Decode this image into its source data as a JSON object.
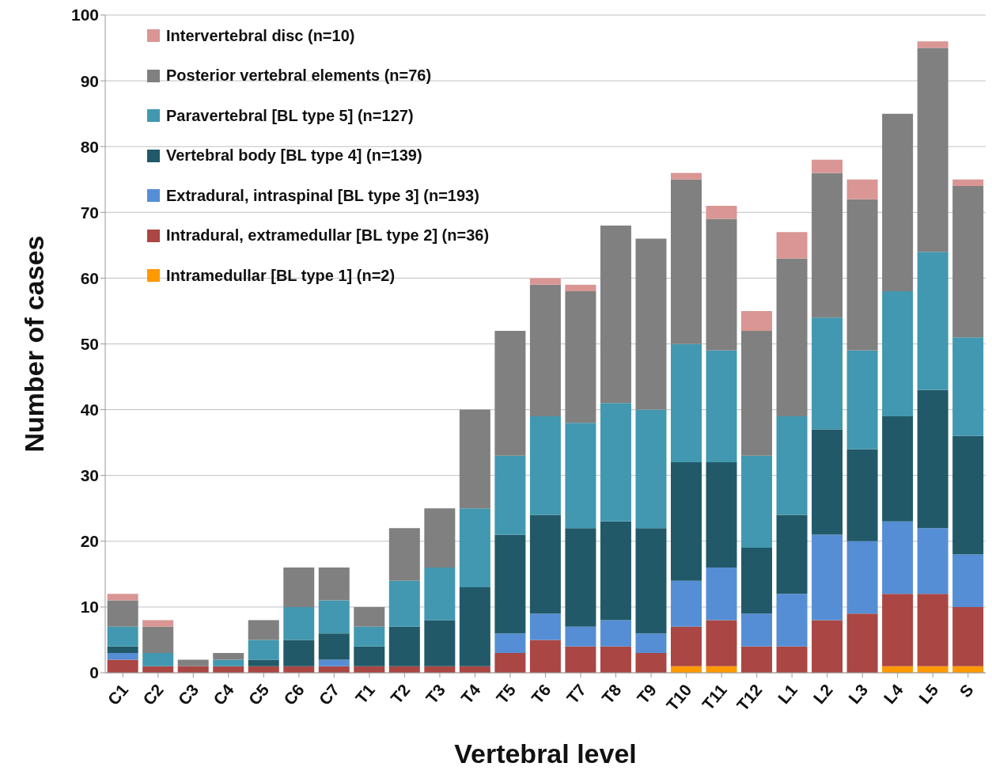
{
  "chart_data": {
    "type": "bar",
    "stacked": true,
    "xlabel": "Vertebral level",
    "ylabel": "Number of cases",
    "categories": [
      "C1",
      "C2",
      "C3",
      "C4",
      "C5",
      "C6",
      "C7",
      "T1",
      "T2",
      "T3",
      "T4",
      "T5",
      "T6",
      "T7",
      "T8",
      "T9",
      "T10",
      "T11",
      "T12",
      "L1",
      "L2",
      "L3",
      "L4",
      "L5",
      "S"
    ],
    "series": [
      {
        "name": "Intramedullar [BL type 1] (n=2)",
        "color": "#ff9900",
        "values": [
          0,
          0,
          0,
          0,
          0,
          0,
          0,
          0,
          0,
          0,
          0,
          0,
          0,
          0,
          0,
          0,
          1,
          1,
          0,
          0,
          0,
          0,
          1,
          1,
          1
        ]
      },
      {
        "name": "Intradural, extramedullar [BL type 2] (n=36)",
        "color": "#aa4643",
        "values": [
          2,
          1,
          1,
          1,
          1,
          1,
          1,
          1,
          1,
          1,
          1,
          3,
          5,
          4,
          4,
          3,
          6,
          7,
          4,
          4,
          8,
          9,
          11,
          11,
          9
        ]
      },
      {
        "name": "Extradural, intraspinal [BL type 3] (n=193)",
        "color": "#558ed5",
        "values": [
          1,
          0,
          0,
          0,
          0,
          0,
          1,
          0,
          0,
          0,
          0,
          3,
          4,
          3,
          4,
          3,
          7,
          8,
          5,
          8,
          13,
          11,
          11,
          10,
          8
        ]
      },
      {
        "name": "Vertebral body [BL type 4] (n=139)",
        "color": "#215968",
        "values": [
          1,
          0,
          0,
          0,
          1,
          4,
          4,
          3,
          6,
          7,
          12,
          15,
          15,
          15,
          15,
          16,
          18,
          16,
          10,
          12,
          16,
          14,
          16,
          21,
          18
        ]
      },
      {
        "name": "Paravertebral [BL type 5] (n=127)",
        "color": "#4198b0",
        "values": [
          3,
          2,
          0,
          1,
          3,
          5,
          5,
          3,
          7,
          8,
          12,
          12,
          15,
          16,
          18,
          18,
          18,
          17,
          14,
          15,
          17,
          15,
          19,
          21,
          15
        ]
      },
      {
        "name": "Posterior vertebral elements (n=76)",
        "color": "#808080",
        "values": [
          4,
          4,
          1,
          1,
          3,
          6,
          5,
          3,
          8,
          9,
          15,
          19,
          20,
          20,
          27,
          26,
          25,
          20,
          19,
          24,
          22,
          23,
          27,
          31,
          23
        ]
      },
      {
        "name": "Intervertebral disc (n=10)",
        "color": "#d99694",
        "values": [
          1,
          1,
          0,
          0,
          0,
          0,
          0,
          0,
          0,
          0,
          0,
          0,
          1,
          1,
          0,
          0,
          1,
          2,
          3,
          4,
          2,
          3,
          0,
          1,
          1
        ]
      }
    ],
    "ylim": [
      0,
      100
    ],
    "yticks": [
      0,
      10,
      20,
      30,
      40,
      50,
      60,
      70,
      80,
      90,
      100
    ],
    "grid": "y",
    "legend": "top left"
  }
}
